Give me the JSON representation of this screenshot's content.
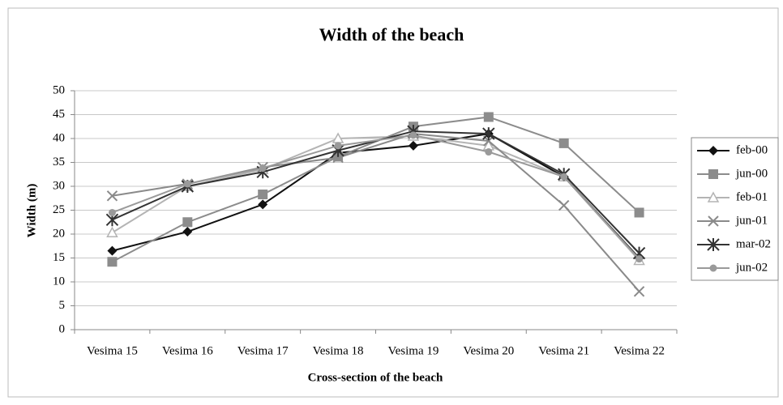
{
  "chart_data": {
    "type": "line",
    "title": "Width of the beach",
    "xlabel": "Cross-section of the beach",
    "ylabel": "Width (m)",
    "categories": [
      "Vesima 15",
      "Vesima 16",
      "Vesima 17",
      "Vesima 18",
      "Vesima 19",
      "Vesima 20",
      "Vesima 21",
      "Vesima 22"
    ],
    "series": [
      {
        "name": "feb-00",
        "color": "#111111",
        "marker": "diamond",
        "values": [
          16.5,
          20.5,
          26.2,
          37,
          38.5,
          41,
          32,
          15
        ]
      },
      {
        "name": "jun-00",
        "color": "#8c8c8c",
        "marker": "square",
        "values": [
          14.2,
          22.5,
          28.3,
          36.2,
          42.5,
          44.5,
          39,
          24.5
        ]
      },
      {
        "name": "feb-01",
        "color": "#b4b4b4",
        "marker": "triangle",
        "values": [
          20.3,
          30,
          33.5,
          40,
          40.5,
          38.5,
          32,
          14.5
        ]
      },
      {
        "name": "jun-01",
        "color": "#8a8a8a",
        "marker": "x",
        "values": [
          28,
          30.5,
          34,
          36,
          41,
          39.5,
          26,
          8
        ]
      },
      {
        "name": "mar-02",
        "color": "#333333",
        "marker": "star",
        "values": [
          23,
          30,
          33,
          37.5,
          41.5,
          41,
          32.5,
          16
        ]
      },
      {
        "name": "jun-02",
        "color": "#9a9a9a",
        "marker": "circle",
        "values": [
          24.5,
          30.5,
          33.8,
          38.5,
          40.7,
          37.2,
          32,
          14.8
        ]
      }
    ],
    "ylim": [
      0,
      50
    ],
    "yticks": [
      0,
      5,
      10,
      15,
      20,
      25,
      30,
      35,
      40,
      45,
      50
    ],
    "grid": true,
    "legend": "right"
  }
}
